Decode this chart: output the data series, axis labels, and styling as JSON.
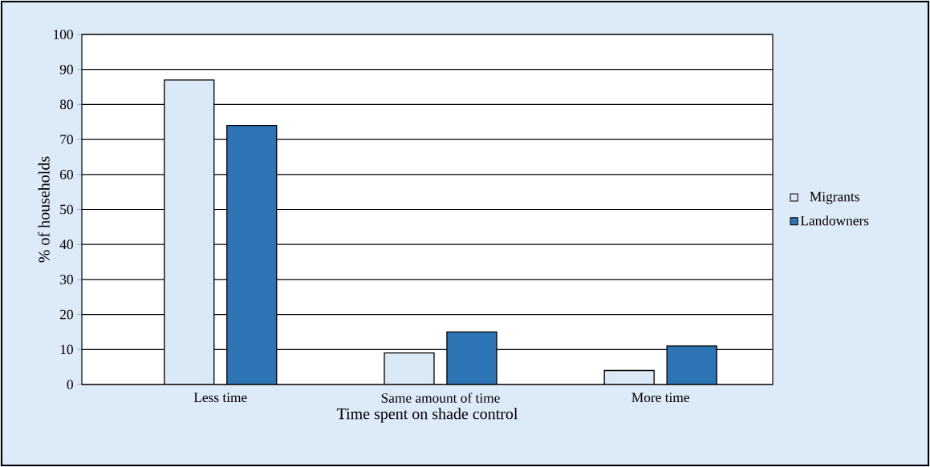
{
  "chart_data": {
    "type": "bar",
    "xlabel": "Time spent on shade control",
    "ylabel": "% of households",
    "categories": [
      "Less time",
      "Same amount of time",
      "More time"
    ],
    "series": [
      {
        "name": "Migrants",
        "color": "#dbe8f5",
        "values": [
          87,
          9,
          4
        ]
      },
      {
        "name": "Landowners",
        "color": "#2e75b6",
        "values": [
          74,
          15,
          11
        ]
      }
    ],
    "ylim": [
      0,
      100
    ],
    "yticks": [
      0,
      10,
      20,
      30,
      40,
      50,
      60,
      70,
      80,
      90,
      100
    ],
    "grid": "y",
    "legend": "right"
  }
}
